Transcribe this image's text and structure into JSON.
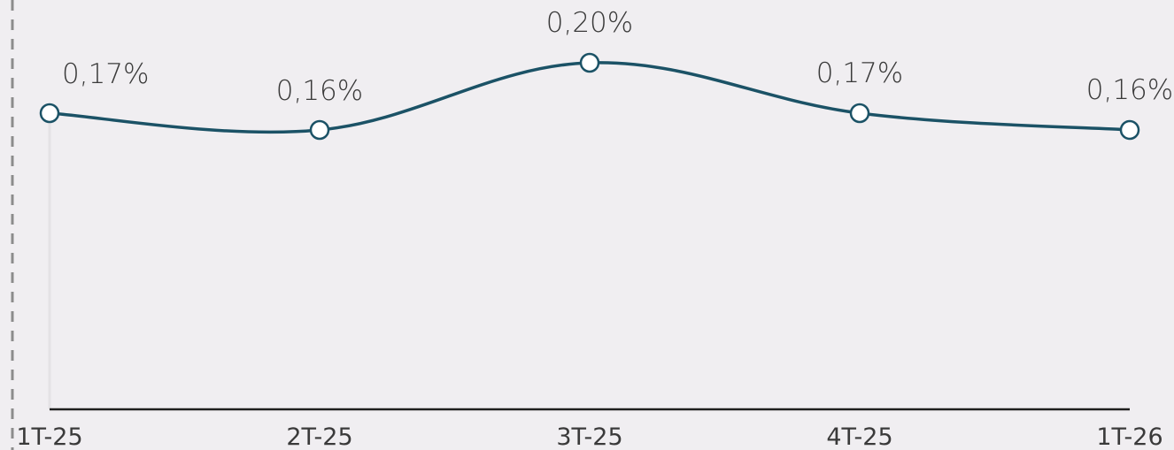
{
  "chart_data": {
    "type": "line",
    "categories": [
      "1T-25",
      "2T-25",
      "3T-25",
      "4T-25",
      "1T-26"
    ],
    "values": [
      0.17,
      0.16,
      0.2,
      0.17,
      0.16
    ],
    "data_labels": [
      "0,17%",
      "0,16%",
      "0,20%",
      "0,17%",
      "0,16%"
    ],
    "title": "",
    "xlabel": "",
    "ylabel": "",
    "grid": false,
    "legend": "none",
    "colors": {
      "line": "#1b5266",
      "point_fill": "#ffffff",
      "axis": "#1f1f1f",
      "background": "#f0eef1"
    }
  }
}
